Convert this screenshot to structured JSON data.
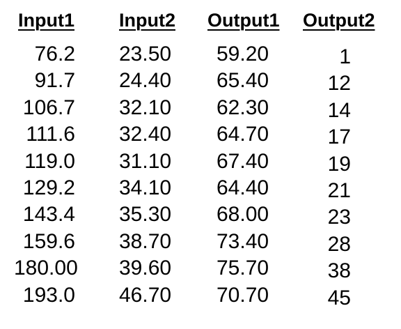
{
  "headers": [
    "Input1",
    "Input2",
    "Output1",
    "Output2"
  ],
  "rows": [
    [
      "76.2",
      "23.50",
      "59.20",
      "1"
    ],
    [
      "91.7",
      "24.40",
      "65.40",
      "12"
    ],
    [
      "106.7",
      "32.10",
      "62.30",
      "14"
    ],
    [
      "111.6",
      "32.40",
      "64.70",
      "17"
    ],
    [
      "119.0",
      "31.10",
      "67.40",
      "19"
    ],
    [
      "129.2",
      "34.10",
      "64.40",
      "21"
    ],
    [
      "143.4",
      "35.30",
      "68.00",
      "23"
    ],
    [
      "159.6",
      "38.70",
      "73.40",
      "28"
    ],
    [
      "180.00",
      "39.60",
      "75.70",
      "38"
    ],
    [
      "193.0",
      "46.70",
      "70.70",
      "45"
    ]
  ]
}
